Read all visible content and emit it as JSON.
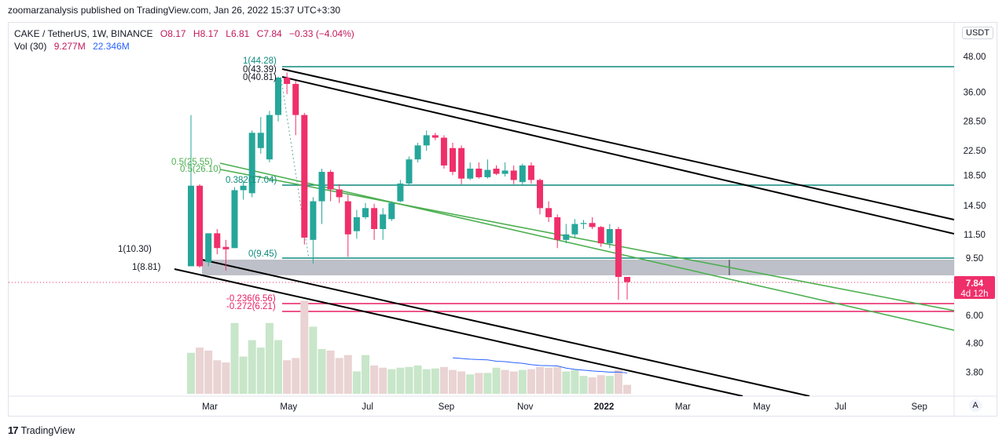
{
  "publish_line": "zoomarzanalysis published on TradingView.com, Jan 26, 2022 15:37 UTC+3:30",
  "legend": {
    "symbol": "CAKE / TetherUS, 1W, BINANCE",
    "open": "O8.17",
    "high": "H8.17",
    "low": "L6.81",
    "close": "C7.84",
    "change": "−0.33 (−4.04%)",
    "vol_label": "Vol (30)",
    "vol_value": "9.277M",
    "vol_ma": "22.346M"
  },
  "currency_button": "USDT",
  "auto_button": "A",
  "brand": {
    "logo": "17",
    "name": "TradingView"
  },
  "colors": {
    "up": "#26a69a",
    "down": "#ef2f6a",
    "vol_up": "#c8e6c9",
    "vol_down": "#ead3d3",
    "fib": "#0e8a7d",
    "green_channel": "#4caf50",
    "black_channel": "#000000",
    "zone": "#b2b5be",
    "pink": "#e91e63",
    "ma": "#2962ff",
    "price_tag": "#ef2f6a"
  },
  "price_tag": {
    "price": "7.84",
    "countdown": "4d 12h"
  },
  "chart_data": {
    "type": "candlestick",
    "scale": "log",
    "y_ticks": [
      "48.00",
      "36.00",
      "28.50",
      "22.50",
      "18.50",
      "14.50",
      "11.50",
      "9.50",
      "6.00",
      "4.80",
      "3.80"
    ],
    "x_ticks": [
      "Mar",
      "May",
      "Jul",
      "Sep",
      "Nov",
      "2022",
      "Mar",
      "May",
      "Jul",
      "Sep"
    ],
    "candles": [
      {
        "o": 8.9,
        "h": 30.0,
        "l": 8.9,
        "c": 17.0
      },
      {
        "o": 17.0,
        "h": 17.2,
        "l": 8.8,
        "c": 8.9
      },
      {
        "o": 9.2,
        "h": 11.5,
        "l": 8.9,
        "c": 11.6
      },
      {
        "o": 11.6,
        "h": 12.0,
        "l": 9.8,
        "c": 10.3
      },
      {
        "o": 10.4,
        "h": 11.0,
        "l": 8.6,
        "c": 10.2
      },
      {
        "o": 10.3,
        "h": 16.8,
        "l": 10.3,
        "c": 16.4
      },
      {
        "o": 16.4,
        "h": 17.6,
        "l": 15.2,
        "c": 17.0
      },
      {
        "o": 16.0,
        "h": 26.5,
        "l": 15.5,
        "c": 26.0
      },
      {
        "o": 23.0,
        "h": 29.5,
        "l": 22.0,
        "c": 26.0
      },
      {
        "o": 21.0,
        "h": 31.0,
        "l": 20.5,
        "c": 30.0
      },
      {
        "o": 30.0,
        "h": 40.8,
        "l": 28.5,
        "c": 40.5
      },
      {
        "o": 40.5,
        "h": 42.2,
        "l": 35.5,
        "c": 38.5
      },
      {
        "o": 38.5,
        "h": 39.5,
        "l": 25.5,
        "c": 30.0
      },
      {
        "o": 30.0,
        "h": 30.5,
        "l": 10.6,
        "c": 11.2
      },
      {
        "o": 11.0,
        "h": 15.5,
        "l": 9.1,
        "c": 15.0
      },
      {
        "o": 15.0,
        "h": 19.5,
        "l": 12.5,
        "c": 19.0
      },
      {
        "o": 19.0,
        "h": 19.3,
        "l": 15.0,
        "c": 16.5
      },
      {
        "o": 16.5,
        "h": 17.2,
        "l": 14.8,
        "c": 15.5
      },
      {
        "o": 15.0,
        "h": 15.8,
        "l": 9.6,
        "c": 11.5
      },
      {
        "o": 11.8,
        "h": 14.0,
        "l": 11.1,
        "c": 13.2
      },
      {
        "o": 13.2,
        "h": 14.8,
        "l": 13.0,
        "c": 14.2
      },
      {
        "o": 14.2,
        "h": 14.7,
        "l": 11.0,
        "c": 12.0
      },
      {
        "o": 12.0,
        "h": 14.2,
        "l": 11.0,
        "c": 13.5
      },
      {
        "o": 13.0,
        "h": 15.0,
        "l": 12.8,
        "c": 14.8
      },
      {
        "o": 15.0,
        "h": 17.8,
        "l": 14.9,
        "c": 17.3
      },
      {
        "o": 17.3,
        "h": 21.5,
        "l": 17.0,
        "c": 21.0
      },
      {
        "o": 21.0,
        "h": 24.0,
        "l": 20.5,
        "c": 23.5
      },
      {
        "o": 23.5,
        "h": 26.5,
        "l": 22.5,
        "c": 25.5
      },
      {
        "o": 25.5,
        "h": 26.0,
        "l": 24.5,
        "c": 25.0
      },
      {
        "o": 25.0,
        "h": 25.5,
        "l": 19.5,
        "c": 20.0
      },
      {
        "o": 23.0,
        "h": 24.0,
        "l": 18.5,
        "c": 19.0
      },
      {
        "o": 23.0,
        "h": 23.5,
        "l": 17.2,
        "c": 18.0
      },
      {
        "o": 18.0,
        "h": 20.5,
        "l": 17.8,
        "c": 19.5
      },
      {
        "o": 19.5,
        "h": 20.5,
        "l": 18.0,
        "c": 18.2
      },
      {
        "o": 18.2,
        "h": 21.0,
        "l": 18.0,
        "c": 19.3
      },
      {
        "o": 19.5,
        "h": 20.0,
        "l": 18.5,
        "c": 18.7
      },
      {
        "o": 18.7,
        "h": 20.5,
        "l": 18.3,
        "c": 19.2
      },
      {
        "o": 19.2,
        "h": 20.0,
        "l": 17.2,
        "c": 17.8
      },
      {
        "o": 17.5,
        "h": 20.3,
        "l": 17.0,
        "c": 20.0
      },
      {
        "o": 20.0,
        "h": 20.5,
        "l": 17.3,
        "c": 17.8
      },
      {
        "o": 17.8,
        "h": 18.0,
        "l": 13.5,
        "c": 14.2
      },
      {
        "o": 14.2,
        "h": 15.0,
        "l": 12.7,
        "c": 13.2
      },
      {
        "o": 13.2,
        "h": 13.5,
        "l": 10.3,
        "c": 11.0
      },
      {
        "o": 11.0,
        "h": 12.5,
        "l": 10.7,
        "c": 11.5
      },
      {
        "o": 11.5,
        "h": 13.0,
        "l": 11.2,
        "c": 12.5
      },
      {
        "o": 12.5,
        "h": 12.9,
        "l": 12.0,
        "c": 12.6
      },
      {
        "o": 12.6,
        "h": 13.2,
        "l": 12.0,
        "c": 12.2
      },
      {
        "o": 12.2,
        "h": 12.3,
        "l": 10.4,
        "c": 10.7
      },
      {
        "o": 10.7,
        "h": 12.5,
        "l": 10.3,
        "c": 12.0
      },
      {
        "o": 12.0,
        "h": 12.2,
        "l": 6.8,
        "c": 8.17
      },
      {
        "o": 8.17,
        "h": 8.17,
        "l": 6.81,
        "c": 7.84
      }
    ],
    "volume": [
      {
        "v": 0.55,
        "up": true
      },
      {
        "v": 0.62,
        "up": false
      },
      {
        "v": 0.58,
        "up": false
      },
      {
        "v": 0.45,
        "up": false
      },
      {
        "v": 0.42,
        "up": false
      },
      {
        "v": 0.95,
        "up": true
      },
      {
        "v": 0.5,
        "up": true
      },
      {
        "v": 0.72,
        "up": true
      },
      {
        "v": 0.62,
        "up": true
      },
      {
        "v": 0.95,
        "up": true
      },
      {
        "v": 0.72,
        "up": true
      },
      {
        "v": 0.45,
        "up": false
      },
      {
        "v": 0.48,
        "up": false
      },
      {
        "v": 1.25,
        "up": false
      },
      {
        "v": 0.9,
        "up": true
      },
      {
        "v": 0.6,
        "up": true
      },
      {
        "v": 0.58,
        "up": false
      },
      {
        "v": 0.48,
        "up": false
      },
      {
        "v": 0.52,
        "up": false
      },
      {
        "v": 0.3,
        "up": true
      },
      {
        "v": 0.52,
        "up": true
      },
      {
        "v": 0.38,
        "up": false
      },
      {
        "v": 0.35,
        "up": false
      },
      {
        "v": 0.33,
        "up": true
      },
      {
        "v": 0.35,
        "up": true
      },
      {
        "v": 0.36,
        "up": true
      },
      {
        "v": 0.38,
        "up": true
      },
      {
        "v": 0.33,
        "up": true
      },
      {
        "v": 0.34,
        "up": true
      },
      {
        "v": 0.36,
        "up": false
      },
      {
        "v": 0.32,
        "up": false
      },
      {
        "v": 0.3,
        "up": false
      },
      {
        "v": 0.26,
        "up": true
      },
      {
        "v": 0.28,
        "up": false
      },
      {
        "v": 0.28,
        "up": true
      },
      {
        "v": 0.35,
        "up": true
      },
      {
        "v": 0.32,
        "up": false
      },
      {
        "v": 0.3,
        "up": false
      },
      {
        "v": 0.32,
        "up": true
      },
      {
        "v": 0.33,
        "up": false
      },
      {
        "v": 0.36,
        "up": false
      },
      {
        "v": 0.35,
        "up": false
      },
      {
        "v": 0.36,
        "up": false
      },
      {
        "v": 0.3,
        "up": true
      },
      {
        "v": 0.32,
        "up": true
      },
      {
        "v": 0.24,
        "up": true
      },
      {
        "v": 0.22,
        "up": false
      },
      {
        "v": 0.25,
        "up": false
      },
      {
        "v": 0.24,
        "up": true
      },
      {
        "v": 0.32,
        "up": false
      },
      {
        "v": 0.12,
        "up": false
      }
    ]
  },
  "annotations": {
    "fib_1_top": "1(44.28)",
    "fib_0_a": "0(43.39)",
    "fib_0_b": "0(40.81)",
    "fib_05_a": "0.5(25.55)",
    "fib_05_b": "0.5(26.10)",
    "fib_0382": "0.382(17.04)",
    "fib_0_low": "0(9.45)",
    "fib_1_1030": "1(10.30)",
    "fib_1_881": "1(8.81)",
    "ext_0236": "-0.236(6.56)",
    "ext_0272": "-0.272(6.21)"
  }
}
